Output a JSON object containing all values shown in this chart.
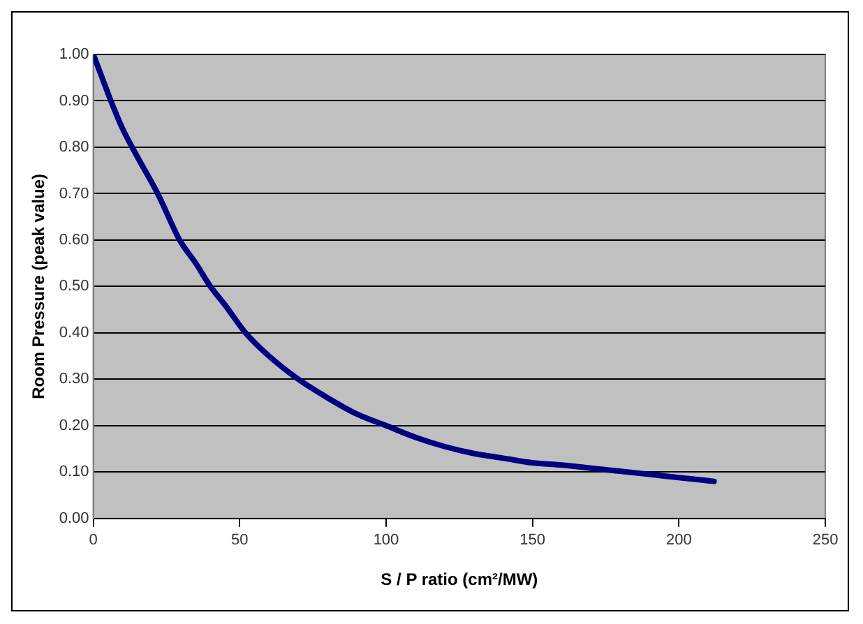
{
  "chart_data": {
    "type": "line",
    "xlabel": "S / P ratio (cm²/MW)",
    "ylabel": "Room Pressure (peak value)",
    "x": [
      0,
      3,
      6,
      10,
      15,
      22,
      29.5,
      35,
      40,
      45,
      52,
      60,
      70,
      80,
      90,
      100,
      110,
      120,
      130,
      140,
      150,
      160,
      175,
      190,
      200,
      212
    ],
    "series": [
      {
        "color": "#000080",
        "values": [
          1.0,
          0.95,
          0.9,
          0.84,
          0.78,
          0.7,
          0.6,
          0.55,
          0.5,
          0.46,
          0.4,
          0.35,
          0.3,
          0.26,
          0.225,
          0.2,
          0.175,
          0.155,
          0.14,
          0.13,
          0.12,
          0.115,
          0.105,
          0.095,
          0.088,
          0.08
        ]
      }
    ],
    "xlim": [
      0,
      250
    ],
    "xticks": [
      0,
      50,
      100,
      150,
      200,
      250
    ],
    "ylim": [
      0,
      1
    ],
    "yticks": [
      {
        "value": 0,
        "label": "0.00"
      },
      {
        "value": 0.1,
        "label": "0.10"
      },
      {
        "value": 0.2,
        "label": "0.20"
      },
      {
        "value": 0.3,
        "label": "0.30"
      },
      {
        "value": 0.4,
        "label": "0.40"
      },
      {
        "value": 0.5,
        "label": "0.50"
      },
      {
        "value": 0.6,
        "label": "0.60"
      },
      {
        "value": 0.7,
        "label": "0.70"
      },
      {
        "value": 0.8,
        "label": "0.80"
      },
      {
        "value": 0.9,
        "label": "0.90"
      },
      {
        "value": 1,
        "label": "1.00"
      }
    ],
    "grid": "y",
    "legend": false,
    "marker": "none",
    "line_style": "solid"
  }
}
